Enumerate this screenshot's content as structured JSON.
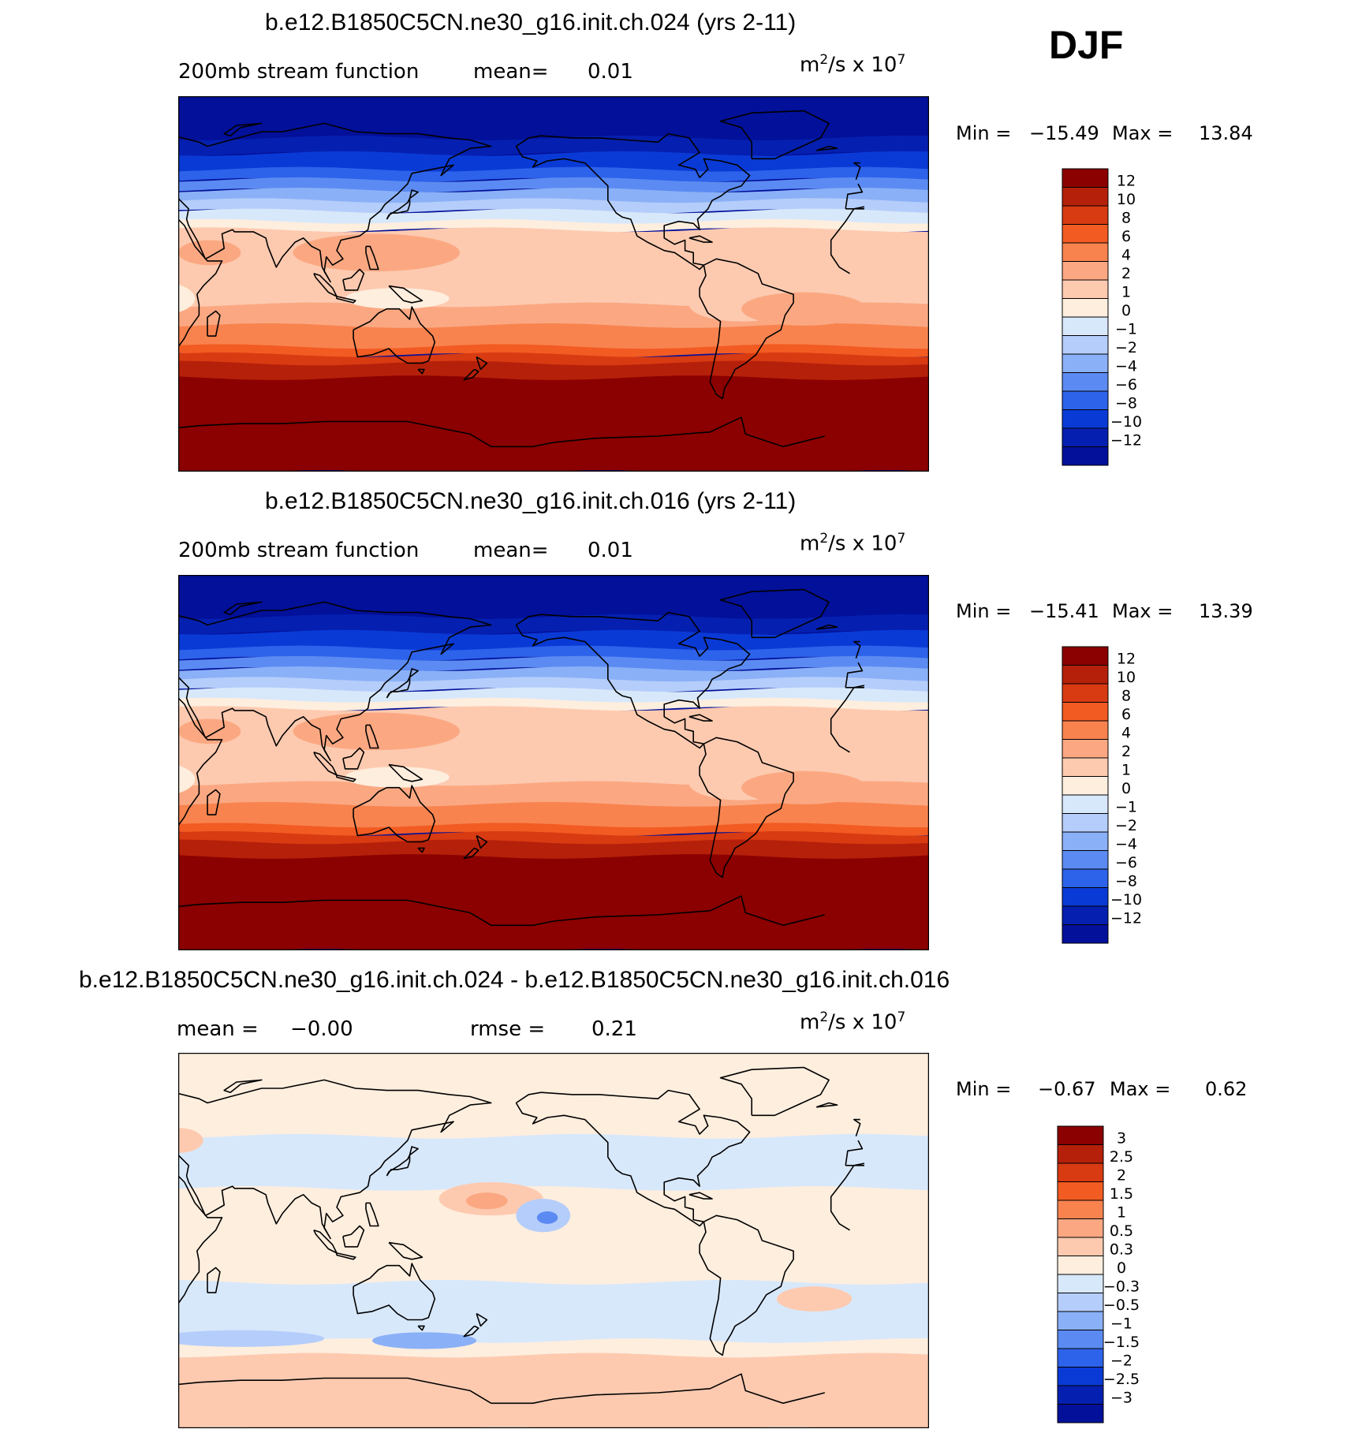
{
  "season": "DJF",
  "panels": [
    {
      "title": "b.e12.B1850C5CN.ne30_g16.init.ch.024 (yrs 2-11)",
      "variable": "200mb stream function",
      "stat1_label": "mean=",
      "stat1_value": "0.01",
      "stat2_label": "",
      "stat2_value": "",
      "units_base": "m",
      "units_exp": "2",
      "units_mid": "/s x 10",
      "units_exp2": "7",
      "min_label": "Min =",
      "min_value": "−15.49",
      "max_label": "Max =",
      "max_value": "13.84",
      "colorbar": {
        "labels": [
          "12",
          "10",
          "8",
          "6",
          "4",
          "2",
          "1",
          "0",
          "−1",
          "−2",
          "−4",
          "−6",
          "−8",
          "−10",
          "−12"
        ],
        "colors": [
          "#8b0000",
          "#b5200a",
          "#d83a12",
          "#f25b22",
          "#f8834f",
          "#fba882",
          "#fdcab0",
          "#feeede",
          "#d8e8fb",
          "#b5cdfa",
          "#8ab0f7",
          "#5b8bf2",
          "#2d62ea",
          "#0a3ad6",
          "#0520b0",
          "#02109a"
        ]
      },
      "color_scale": [
        "#02109a",
        "#0520b0",
        "#0a3ad6",
        "#2d62ea",
        "#5b8bf2",
        "#8ab0f7",
        "#b5cdfa",
        "#d8e8fb",
        "#feeede",
        "#fdcab0",
        "#fba882",
        "#f8834f",
        "#f25b22",
        "#d83a12",
        "#b5200a",
        "#8b0000"
      ],
      "map_data": {
        "base": [
          {
            "lat": 90,
            "level": 0
          },
          {
            "lat": 70,
            "level": 0
          },
          {
            "lat": 55,
            "level": 2
          },
          {
            "lat": 40,
            "level": 5
          },
          {
            "lat": 30,
            "level": 7
          },
          {
            "lat": 22,
            "level": 9
          },
          {
            "lat": 10,
            "level": 9
          },
          {
            "lat": 0,
            "level": 9
          },
          {
            "lat": -10,
            "level": 9
          },
          {
            "lat": -20,
            "level": 10
          },
          {
            "lat": -30,
            "level": 11
          },
          {
            "lat": -38,
            "level": 13
          },
          {
            "lat": -45,
            "level": 14
          },
          {
            "lat": -52,
            "level": 15
          },
          {
            "lat": -90,
            "level": 15
          }
        ],
        "blobs": [
          {
            "lon": 125,
            "lat": 15,
            "rlon": 40,
            "rlat": 9,
            "level": 10
          },
          {
            "lon": 45,
            "lat": 15,
            "rlon": 15,
            "rlat": 6,
            "level": 10
          },
          {
            "lon": 135,
            "lat": -7,
            "rlon": 25,
            "rlat": 5,
            "level": 8
          },
          {
            "lon": 20,
            "lat": -7,
            "rlon": 18,
            "rlat": 8,
            "level": 8
          },
          {
            "lon": -60,
            "lat": -10,
            "rlon": 25,
            "rlat": 8,
            "level": 9
          },
          {
            "lon": -30,
            "lat": -12,
            "rlon": 30,
            "rlat": 8,
            "level": 10
          }
        ]
      }
    },
    {
      "title": "b.e12.B1850C5CN.ne30_g16.init.ch.016 (yrs 2-11)",
      "variable": "200mb stream function",
      "stat1_label": "mean=",
      "stat1_value": "0.01",
      "stat2_label": "",
      "stat2_value": "",
      "units_base": "m",
      "units_exp": "2",
      "units_mid": "/s x 10",
      "units_exp2": "7",
      "min_label": "Min =",
      "min_value": "−15.41",
      "max_label": "Max =",
      "max_value": "13.39",
      "colorbar": {
        "labels": [
          "12",
          "10",
          "8",
          "6",
          "4",
          "2",
          "1",
          "0",
          "−1",
          "−2",
          "−4",
          "−6",
          "−8",
          "−10",
          "−12"
        ],
        "colors": [
          "#8b0000",
          "#b5200a",
          "#d83a12",
          "#f25b22",
          "#f8834f",
          "#fba882",
          "#fdcab0",
          "#feeede",
          "#d8e8fb",
          "#b5cdfa",
          "#8ab0f7",
          "#5b8bf2",
          "#2d62ea",
          "#0a3ad6",
          "#0520b0",
          "#02109a"
        ]
      },
      "color_scale": [
        "#02109a",
        "#0520b0",
        "#0a3ad6",
        "#2d62ea",
        "#5b8bf2",
        "#8ab0f7",
        "#b5cdfa",
        "#d8e8fb",
        "#feeede",
        "#fdcab0",
        "#fba882",
        "#f8834f",
        "#f25b22",
        "#d83a12",
        "#b5200a",
        "#8b0000"
      ],
      "map_data": {
        "base": [
          {
            "lat": 90,
            "level": 0
          },
          {
            "lat": 70,
            "level": 0
          },
          {
            "lat": 55,
            "level": 2
          },
          {
            "lat": 40,
            "level": 5
          },
          {
            "lat": 30,
            "level": 7
          },
          {
            "lat": 22,
            "level": 9
          },
          {
            "lat": 10,
            "level": 9
          },
          {
            "lat": 0,
            "level": 9
          },
          {
            "lat": -10,
            "level": 9
          },
          {
            "lat": -20,
            "level": 10
          },
          {
            "lat": -30,
            "level": 11
          },
          {
            "lat": -38,
            "level": 13
          },
          {
            "lat": -45,
            "level": 14
          },
          {
            "lat": -52,
            "level": 15
          },
          {
            "lat": -90,
            "level": 15
          }
        ],
        "blobs": [
          {
            "lon": 125,
            "lat": 15,
            "rlon": 40,
            "rlat": 9,
            "level": 10
          },
          {
            "lon": 45,
            "lat": 15,
            "rlon": 15,
            "rlat": 6,
            "level": 10
          },
          {
            "lon": 135,
            "lat": -7,
            "rlon": 25,
            "rlat": 5,
            "level": 8
          },
          {
            "lon": 20,
            "lat": -8,
            "rlon": 18,
            "rlat": 8,
            "level": 8
          },
          {
            "lon": -60,
            "lat": -10,
            "rlon": 25,
            "rlat": 8,
            "level": 9
          },
          {
            "lon": -30,
            "lat": -12,
            "rlon": 30,
            "rlat": 8,
            "level": 10
          }
        ]
      }
    },
    {
      "title": "b.e12.B1850C5CN.ne30_g16.init.ch.024 - b.e12.B1850C5CN.ne30_g16.init.ch.016",
      "variable": "",
      "stat1_label": "mean =",
      "stat1_value": "−0.00",
      "stat2_label": "rmse =",
      "stat2_value": "0.21",
      "units_base": "m",
      "units_exp": "2",
      "units_mid": "/s x 10",
      "units_exp2": "7",
      "min_label": "Min =",
      "min_value": "−0.67",
      "max_label": "Max =",
      "max_value": "0.62",
      "colorbar": {
        "labels": [
          "3",
          "2.5",
          "2",
          "1.5",
          "1",
          "0.5",
          "0.3",
          "0",
          "−0.3",
          "−0.5",
          "−1",
          "−1.5",
          "−2",
          "−2.5",
          "−3"
        ],
        "colors": [
          "#8b0000",
          "#b5200a",
          "#d83a12",
          "#f25b22",
          "#f8834f",
          "#fba882",
          "#fdcab0",
          "#feeede",
          "#d8e8fb",
          "#b5cdfa",
          "#8ab0f7",
          "#5b8bf2",
          "#2d62ea",
          "#0a3ad6",
          "#0520b0",
          "#02109a"
        ]
      },
      "color_scale": [
        "#02109a",
        "#0520b0",
        "#0a3ad6",
        "#2d62ea",
        "#5b8bf2",
        "#8ab0f7",
        "#b5cdfa",
        "#d8e8fb",
        "#feeede",
        "#fdcab0",
        "#fba882",
        "#f8834f",
        "#f25b22",
        "#d83a12",
        "#b5200a",
        "#8b0000"
      ],
      "map_data": {
        "base": [
          {
            "lat": 90,
            "level": 8
          },
          {
            "lat": 60,
            "level": 8
          },
          {
            "lat": 50,
            "level": 7
          },
          {
            "lat": 25,
            "level": 7
          },
          {
            "lat": 18,
            "level": 8
          },
          {
            "lat": -20,
            "level": 7
          },
          {
            "lat": -35,
            "level": 7
          },
          {
            "lat": -48,
            "level": 7
          },
          {
            "lat": -55,
            "level": 8
          },
          {
            "lat": -62,
            "level": 9
          },
          {
            "lat": -90,
            "level": 9
          }
        ],
        "blobs": [
          {
            "lon": 180,
            "lat": 20,
            "rlon": 25,
            "rlat": 8,
            "level": 9
          },
          {
            "lon": 178,
            "lat": 19,
            "rlon": 10,
            "rlat": 4,
            "level": 10
          },
          {
            "lon": 205,
            "lat": 12,
            "rlon": 13,
            "rlat": 8,
            "level": 6
          },
          {
            "lon": 207,
            "lat": 11,
            "rlon": 5,
            "rlat": 3,
            "level": 4
          },
          {
            "lon": 60,
            "lat": -47,
            "rlon": 40,
            "rlat": 4,
            "level": 6
          },
          {
            "lon": 148,
            "lat": -48,
            "rlon": 25,
            "rlat": 4,
            "level": 5
          },
          {
            "lon": -25,
            "lat": -28,
            "rlon": 18,
            "rlat": 6,
            "level": 9
          },
          {
            "lon": 30,
            "lat": 48,
            "rlon": 12,
            "rlat": 6,
            "level": 9
          }
        ]
      }
    }
  ]
}
